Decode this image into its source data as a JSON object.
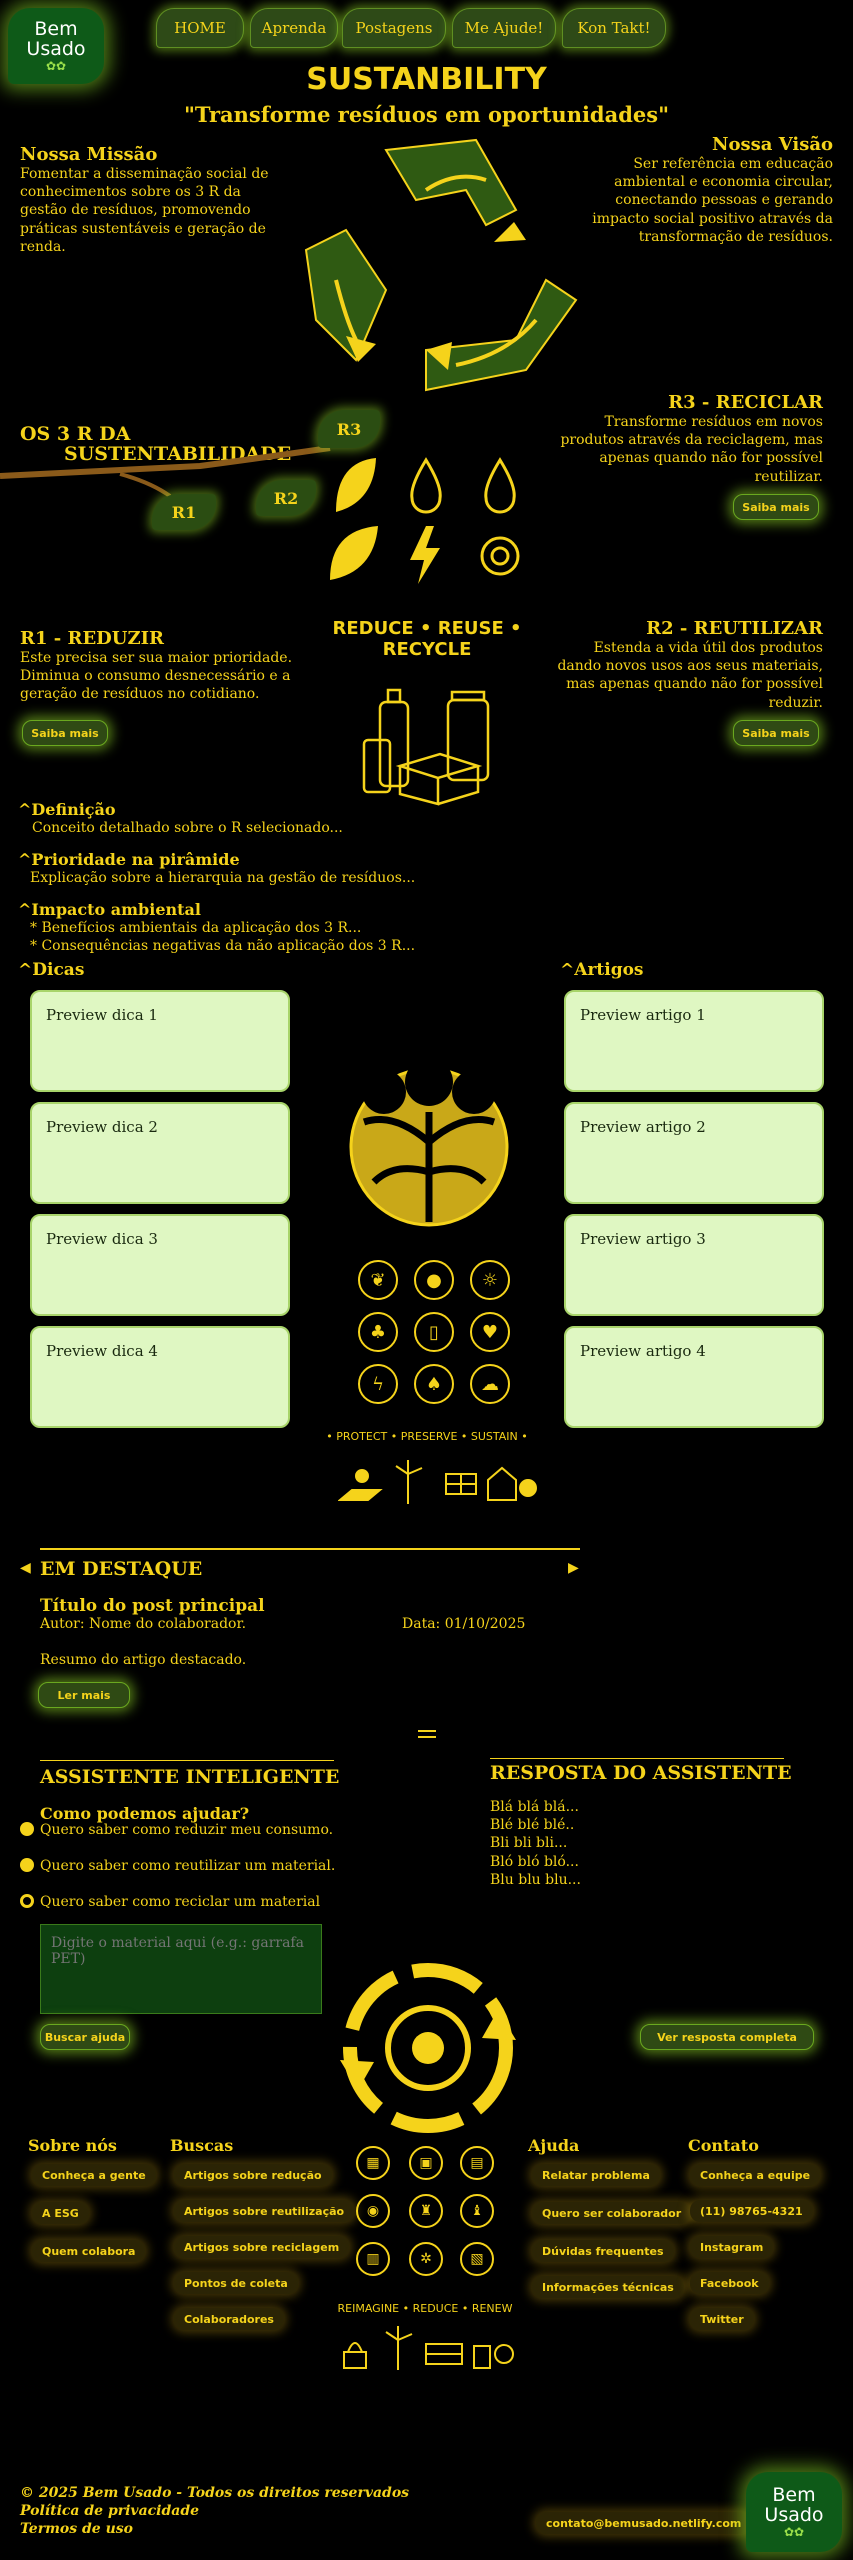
{
  "brand": {
    "line1": "Bem",
    "line2": "Usado"
  },
  "nav": [
    "HOME",
    "Aprenda",
    "Postagens",
    "Me Ajude!",
    "Kon Takt!"
  ],
  "hero": {
    "title": "SUSTANBILITY",
    "subtitle": "\"Transforme resíduos em oportunidades\"",
    "mission_title": "Nossa Missão",
    "mission_text": "Fomentar a disseminação social de conhecimentos sobre os 3 R da gestão de resíduos, promovendo práticas sustentáveis e geração de renda.",
    "vision_title": "Nossa Visão",
    "vision_text": "Ser referência em educação ambiental e economia circular, conectando pessoas e gerando impacto social positivo através da transformação de resíduos."
  },
  "three_r": {
    "title_l1": "OS 3 R DA",
    "title_l2": "SUSTENTABILIDADE",
    "leaves": [
      "R1",
      "R2",
      "R3"
    ],
    "motto": "REDUCE • REUSE • RECYCLE",
    "r3_title": "R3 - RECICLAR",
    "r3_text": "Transforme resíduos em novos produtos através da reciclagem, mas apenas quando não for possível reutilizar.",
    "r1_title": "R1 - REDUZIR",
    "r1_text": "Este precisa ser sua maior prioridade. Diminua o consumo desnecessário e a geração de resíduos no cotidiano.",
    "r2_title": "R2 - REUTILIZAR",
    "r2_text": "Estenda a vida útil dos produtos dando novos usos aos seus materiais, mas apenas quando não for possível reduzir.",
    "more_label": "Saiba mais"
  },
  "details": [
    {
      "title": "Definição",
      "lines": [
        "Conceito detalhado sobre o R selecionado..."
      ]
    },
    {
      "title": "Prioridade na pirâmide",
      "lines": [
        "Explicação sobre a hierarquia na gestão de resíduos..."
      ]
    },
    {
      "title": "Impacto ambiental",
      "lines": [
        "* Benefícios ambientais da aplicação dos 3 R...",
        "* Consequências negativas da não aplicação dos 3 R..."
      ]
    }
  ],
  "tips": {
    "title": "Dicas",
    "items": [
      "Preview dica 1",
      "Preview dica 2",
      "Preview dica 3",
      "Preview dica 4"
    ]
  },
  "articles": {
    "title": "Artigos",
    "items": [
      "Preview artigo 1",
      "Preview artigo 2",
      "Preview artigo 3",
      "Preview artigo 4"
    ]
  },
  "globe_motto": "• PROTECT • PRESERVE • SUSTAIN •",
  "featured": {
    "title": "EM DESTAQUE",
    "post_title": "Título do post principal",
    "author": "Autor: Nome do colaborador.",
    "date": "Data: 01/10/2025",
    "summary": "Resumo do artigo destacado.",
    "read_more": "Ler mais"
  },
  "assistant": {
    "title": "ASSISTENTE INTELIGENTE",
    "question": "Como podemos ajudar?",
    "options": [
      "Quero saber como reduzir meu consumo.",
      "Quero saber como reutilizar um material.",
      "Quero saber como reciclar um material"
    ],
    "input_placeholder": "Digite o material aqui (e.g.: garrafa PET)",
    "search_label": "Buscar ajuda",
    "response_title": "RESPOSTA DO ASSISTENTE",
    "response_lines": [
      "Blá blá blá...",
      "Blé blé blé..",
      "Bli bli bli...",
      "Bló bló bló...",
      "Blu blu blu..."
    ],
    "full_response_label": "Ver resposta completa"
  },
  "footer": {
    "about_title": "Sobre nós",
    "about_links": [
      "Conheça a gente",
      "A ESG",
      "Quem colabora"
    ],
    "search_title": "Buscas",
    "search_links": [
      "Artigos sobre redução",
      "Artigos sobre reutilização",
      "Artigos sobre reciclagem",
      "Pontos de coleta",
      "Colaboradores"
    ],
    "help_title": "Ajuda",
    "help_links": [
      "Relatar problema",
      "Quero ser colaborador",
      "Dúvidas frequentes",
      "Informações técnicas"
    ],
    "contact_title": "Contato",
    "contact_links": [
      "Conheça a equipe",
      "(11) 98765-4321",
      "Instagram",
      "Facebook",
      "Twitter"
    ],
    "reimagine": "REIMAGINE • REDUCE • RENEW",
    "copyright": "© 2025 Bem Usado - Todos os direitos reservados",
    "privacy": "Política de privacidade",
    "terms": "Termos de uso",
    "email": "contato@bemusado.netlify.com"
  }
}
